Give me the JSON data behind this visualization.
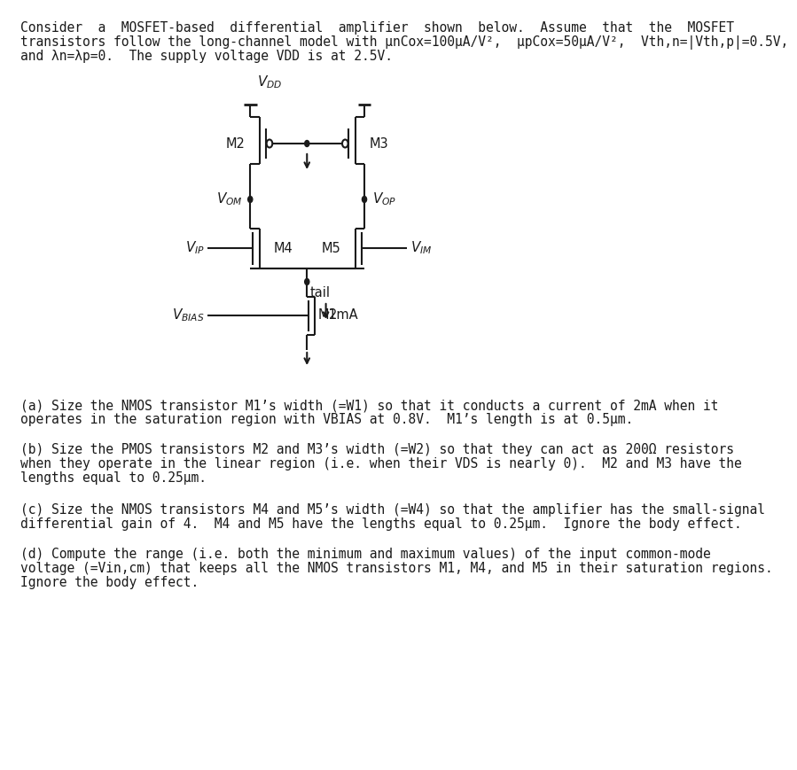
{
  "fig_width": 8.47,
  "fig_height": 8.49,
  "bg_color": "#ffffff",
  "line_color": "#1a1a1a",
  "lw": 1.5,
  "header_lines": [
    "Consider  a  MOSFET-based  differential  amplifier  shown  below.  Assume  that  the  MOSFET",
    "transistors follow the long-channel model with μnCox=100μA/V²,  μpCox=50μA/V²,  Vth,n=|Vth,p|=0.5V,",
    "and λn=λp=0.  The supply voltage VDD is at 2.5V."
  ],
  "part_a_lines": [
    "(a) Size the NMOS transistor M1’s width (=W1) so that it conducts a current of 2mA when it",
    "operates in the saturation region with VBIAS at 0.8V.  M1’s length is at 0.5μm."
  ],
  "part_b_lines": [
    "(b) Size the PMOS transistors M2 and M3’s width (=W2) so that they can act as 200Ω resistors",
    "when they operate in the linear region (i.e. when their VDS is nearly 0).  M2 and M3 have the",
    "lengths equal to 0.25μm."
  ],
  "part_c_lines": [
    "(c) Size the NMOS transistors M4 and M5’s width (=W4) so that the amplifier has the small-signal",
    "differential gain of 4.  M4 and M5 have the lengths equal to 0.25μm.  Ignore the body effect."
  ],
  "part_d_lines": [
    "(d) Compute the range (i.e. both the minimum and maximum values) of the input common-mode",
    "voltage (=Vin,cm) that keeps all the NMOS transistors M1, M4, and M5 in their saturation regions.",
    "Ignore the body effect."
  ]
}
